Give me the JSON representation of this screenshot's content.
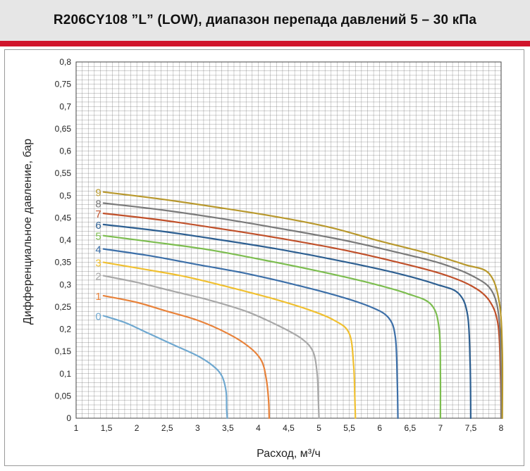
{
  "header": {
    "title": "R206CY108 ”L” (LOW), диапазон перепада давлений 5 – 30 кПа",
    "accent_color": "#d0142b"
  },
  "chart_data": {
    "type": "line",
    "title": "R206CY108 ”L” (LOW), диапазон перепада давлений 5 – 30 кПа",
    "xlabel": "Расход, м³/ч",
    "ylabel": "Дифференциальное давление, бар",
    "xlim": [
      1,
      8
    ],
    "ylim": [
      0,
      0.8
    ],
    "x_ticks": [
      "1",
      "1,5",
      "2",
      "2,5",
      "3",
      "3,5",
      "4",
      "4,5",
      "5",
      "5,5",
      "6",
      "6,5",
      "7",
      "7,5",
      "8"
    ],
    "y_ticks": [
      "0",
      "0,05",
      "0,1",
      "0,15",
      "0,2",
      "0,25",
      "0,3",
      "0,35",
      "0,4",
      "0,45",
      "0,5",
      "0,55",
      "0,6",
      "0,65",
      "0,7",
      "0,75",
      "0,8"
    ],
    "grid": true,
    "series": [
      {
        "name": "0",
        "color": "#6fa8d0",
        "points": [
          [
            1.45,
            0.23
          ],
          [
            1.8,
            0.215
          ],
          [
            2.2,
            0.19
          ],
          [
            2.6,
            0.165
          ],
          [
            3.0,
            0.14
          ],
          [
            3.25,
            0.118
          ],
          [
            3.4,
            0.095
          ],
          [
            3.47,
            0.06
          ],
          [
            3.48,
            0.02
          ],
          [
            3.49,
            0
          ]
        ]
      },
      {
        "name": "1",
        "color": "#e8823a",
        "points": [
          [
            1.45,
            0.275
          ],
          [
            2.0,
            0.26
          ],
          [
            2.5,
            0.24
          ],
          [
            3.0,
            0.22
          ],
          [
            3.5,
            0.19
          ],
          [
            3.85,
            0.16
          ],
          [
            4.05,
            0.13
          ],
          [
            4.13,
            0.09
          ],
          [
            4.17,
            0.04
          ],
          [
            4.18,
            0
          ]
        ]
      },
      {
        "name": "2",
        "color": "#a8a8a8",
        "points": [
          [
            1.45,
            0.32
          ],
          [
            2.0,
            0.305
          ],
          [
            2.6,
            0.285
          ],
          [
            3.2,
            0.265
          ],
          [
            3.8,
            0.24
          ],
          [
            4.3,
            0.21
          ],
          [
            4.7,
            0.18
          ],
          [
            4.9,
            0.15
          ],
          [
            4.97,
            0.1
          ],
          [
            4.99,
            0.04
          ],
          [
            5.0,
            0
          ]
        ]
      },
      {
        "name": "3",
        "color": "#f0c030",
        "points": [
          [
            1.45,
            0.35
          ],
          [
            2.1,
            0.335
          ],
          [
            2.8,
            0.318
          ],
          [
            3.5,
            0.295
          ],
          [
            4.2,
            0.27
          ],
          [
            4.8,
            0.245
          ],
          [
            5.25,
            0.22
          ],
          [
            5.5,
            0.19
          ],
          [
            5.57,
            0.12
          ],
          [
            5.59,
            0.05
          ],
          [
            5.6,
            0
          ]
        ]
      },
      {
        "name": "4",
        "color": "#3c6fa8",
        "points": [
          [
            1.45,
            0.38
          ],
          [
            2.2,
            0.365
          ],
          [
            3.0,
            0.345
          ],
          [
            3.8,
            0.325
          ],
          [
            4.6,
            0.3
          ],
          [
            5.3,
            0.275
          ],
          [
            5.85,
            0.25
          ],
          [
            6.15,
            0.225
          ],
          [
            6.26,
            0.18
          ],
          [
            6.29,
            0.08
          ],
          [
            6.3,
            0
          ]
        ]
      },
      {
        "name": "5",
        "color": "#7cbd4f",
        "points": [
          [
            1.45,
            0.41
          ],
          [
            2.3,
            0.395
          ],
          [
            3.2,
            0.378
          ],
          [
            4.1,
            0.355
          ],
          [
            5.0,
            0.33
          ],
          [
            5.8,
            0.305
          ],
          [
            6.45,
            0.28
          ],
          [
            6.85,
            0.255
          ],
          [
            6.98,
            0.2
          ],
          [
            7.0,
            0.1
          ],
          [
            7.0,
            0
          ]
        ]
      },
      {
        "name": "6",
        "color": "#2d5f91",
        "points": [
          [
            1.45,
            0.435
          ],
          [
            2.4,
            0.42
          ],
          [
            3.4,
            0.4
          ],
          [
            4.4,
            0.378
          ],
          [
            5.4,
            0.352
          ],
          [
            6.3,
            0.325
          ],
          [
            6.95,
            0.3
          ],
          [
            7.3,
            0.28
          ],
          [
            7.45,
            0.23
          ],
          [
            7.49,
            0.12
          ],
          [
            7.5,
            0
          ]
        ]
      },
      {
        "name": "7",
        "color": "#c0502a",
        "points": [
          [
            1.45,
            0.46
          ],
          [
            2.4,
            0.445
          ],
          [
            3.4,
            0.425
          ],
          [
            4.4,
            0.403
          ],
          [
            5.4,
            0.378
          ],
          [
            6.3,
            0.35
          ],
          [
            7.0,
            0.325
          ],
          [
            7.5,
            0.298
          ],
          [
            7.8,
            0.265
          ],
          [
            7.95,
            0.21
          ],
          [
            7.99,
            0.1
          ],
          [
            8.0,
            0
          ]
        ]
      },
      {
        "name": "8",
        "color": "#7a7a7a",
        "points": [
          [
            1.45,
            0.483
          ],
          [
            2.4,
            0.468
          ],
          [
            3.4,
            0.448
          ],
          [
            4.4,
            0.425
          ],
          [
            5.4,
            0.4
          ],
          [
            6.3,
            0.372
          ],
          [
            7.0,
            0.348
          ],
          [
            7.55,
            0.318
          ],
          [
            7.85,
            0.285
          ],
          [
            7.97,
            0.22
          ],
          [
            8.0,
            0.1
          ],
          [
            8.0,
            0
          ]
        ]
      },
      {
        "name": "9",
        "color": "#b8982c",
        "points": [
          [
            1.45,
            0.508
          ],
          [
            2.4,
            0.492
          ],
          [
            3.4,
            0.472
          ],
          [
            4.4,
            0.45
          ],
          [
            5.2,
            0.428
          ],
          [
            6.0,
            0.398
          ],
          [
            6.8,
            0.37
          ],
          [
            7.4,
            0.345
          ],
          [
            7.8,
            0.325
          ],
          [
            7.97,
            0.26
          ],
          [
            8.02,
            0.15
          ],
          [
            8.02,
            0
          ]
        ]
      }
    ]
  }
}
